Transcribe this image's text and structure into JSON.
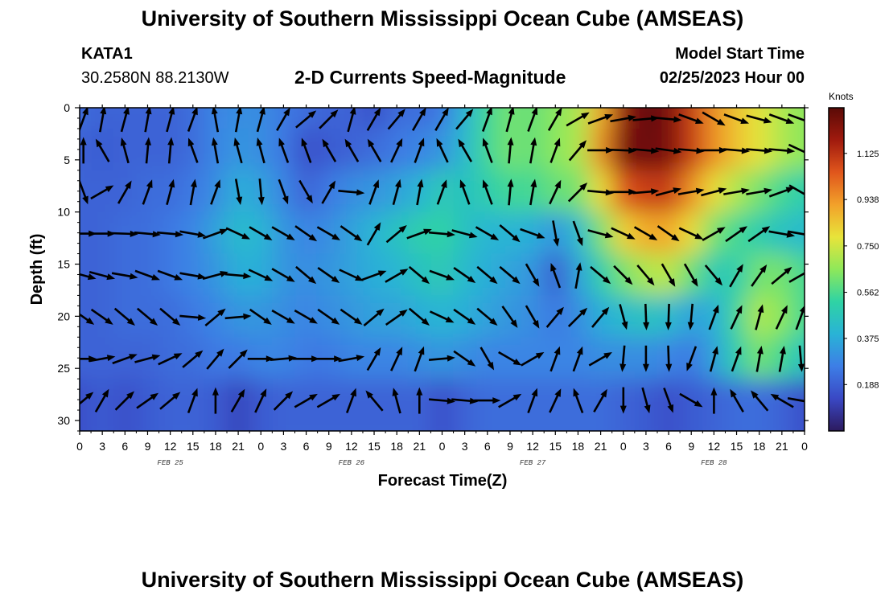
{
  "header": {
    "title": "University of Southern Mississippi Ocean Cube (AMSEAS)",
    "station_id": "KATA1",
    "station_coords": "30.2580N  88.2130W",
    "product": "2-D Currents Speed-Magnitude",
    "model_start_label": "Model Start Time",
    "model_start_value": "02/25/2023 Hour 00"
  },
  "footer": {
    "title": "University of Southern Mississippi Ocean Cube (AMSEAS)"
  },
  "colorbar": {
    "units": "Knots",
    "ticks": [
      "0.188",
      "0.375",
      "0.562",
      "0.750",
      "0.938",
      "1.125"
    ],
    "tick_values": [
      0.188,
      0.375,
      0.562,
      0.75,
      0.938,
      1.125
    ],
    "range": [
      0,
      1.31
    ],
    "colors": [
      "#2c1a5e",
      "#3a48c4",
      "#3d7ee6",
      "#29b3d6",
      "#2fd3a4",
      "#8ee85a",
      "#e8e43a",
      "#f2a12a",
      "#e0561c",
      "#a01a0e",
      "#5a0a06"
    ]
  },
  "chart_data": {
    "type": "heatmap",
    "title": "2-D Currents Speed-Magnitude",
    "xlabel": "Forecast Time(Z)",
    "ylabel": "Depth (ft)",
    "x_tick_labels": [
      "0",
      "3",
      "6",
      "9",
      "12",
      "15",
      "18",
      "21",
      "0",
      "3",
      "6",
      "9",
      "12",
      "15",
      "18",
      "21",
      "0",
      "3",
      "6",
      "9",
      "12",
      "15",
      "18",
      "21",
      "0",
      "3",
      "6",
      "9",
      "12",
      "15",
      "18",
      "21",
      "0"
    ],
    "day_labels": [
      "FEB 25",
      "FEB 26",
      "FEB 27",
      "FEB 28"
    ],
    "y_ticks": [
      0,
      5,
      10,
      15,
      20,
      25,
      30
    ],
    "y_tick_labels": [
      "0",
      "5",
      "10",
      "15",
      "20",
      "25",
      "30"
    ],
    "ylim": [
      0,
      31
    ],
    "xlim_hours": [
      0,
      96
    ],
    "depths_ft": [
      0,
      4,
      8,
      12,
      16,
      20,
      24,
      28
    ],
    "hours": [
      0,
      3,
      6,
      9,
      12,
      15,
      18,
      21,
      24,
      27,
      30,
      33,
      36,
      39,
      42,
      45,
      48,
      51,
      54,
      57,
      60,
      63,
      66,
      69,
      72,
      75,
      78,
      81,
      84,
      87,
      90,
      93,
      96
    ],
    "speed_knots": [
      [
        0.22,
        0.2,
        0.2,
        0.2,
        0.2,
        0.22,
        0.28,
        0.3,
        0.3,
        0.25,
        0.22,
        0.2,
        0.2,
        0.15,
        0.22,
        0.22,
        0.25,
        0.4,
        0.55,
        0.62,
        0.6,
        0.65,
        0.7,
        0.9,
        1.2,
        1.3,
        1.25,
        1.1,
        0.95,
        0.85,
        0.78,
        0.7,
        0.65
      ],
      [
        0.2,
        0.18,
        0.2,
        0.2,
        0.2,
        0.22,
        0.28,
        0.32,
        0.3,
        0.25,
        0.15,
        0.18,
        0.2,
        0.22,
        0.25,
        0.28,
        0.32,
        0.42,
        0.55,
        0.62,
        0.6,
        0.65,
        0.7,
        0.95,
        1.25,
        1.28,
        1.25,
        1.1,
        0.95,
        0.85,
        0.78,
        0.7,
        0.65
      ],
      [
        0.2,
        0.2,
        0.2,
        0.22,
        0.22,
        0.25,
        0.3,
        0.38,
        0.35,
        0.28,
        0.2,
        0.25,
        0.3,
        0.32,
        0.35,
        0.4,
        0.48,
        0.45,
        0.5,
        0.55,
        0.55,
        0.6,
        0.62,
        0.8,
        1.05,
        1.1,
        1.1,
        0.95,
        0.8,
        0.7,
        0.62,
        0.55,
        0.5
      ],
      [
        0.2,
        0.2,
        0.22,
        0.22,
        0.25,
        0.28,
        0.35,
        0.42,
        0.4,
        0.32,
        0.28,
        0.3,
        0.35,
        0.4,
        0.45,
        0.5,
        0.52,
        0.45,
        0.4,
        0.4,
        0.38,
        0.32,
        0.42,
        0.62,
        0.82,
        0.9,
        0.9,
        0.8,
        0.62,
        0.55,
        0.5,
        0.45,
        0.42
      ],
      [
        0.2,
        0.2,
        0.22,
        0.22,
        0.25,
        0.28,
        0.32,
        0.38,
        0.38,
        0.32,
        0.3,
        0.32,
        0.35,
        0.38,
        0.4,
        0.45,
        0.48,
        0.42,
        0.38,
        0.35,
        0.32,
        0.18,
        0.35,
        0.5,
        0.62,
        0.7,
        0.72,
        0.6,
        0.48,
        0.5,
        0.62,
        0.62,
        0.55
      ],
      [
        0.2,
        0.2,
        0.22,
        0.22,
        0.22,
        0.25,
        0.28,
        0.32,
        0.32,
        0.3,
        0.28,
        0.3,
        0.32,
        0.35,
        0.35,
        0.38,
        0.4,
        0.38,
        0.35,
        0.32,
        0.3,
        0.25,
        0.3,
        0.38,
        0.42,
        0.45,
        0.42,
        0.35,
        0.38,
        0.55,
        0.7,
        0.65,
        0.55
      ],
      [
        0.2,
        0.2,
        0.2,
        0.2,
        0.22,
        0.22,
        0.25,
        0.25,
        0.28,
        0.28,
        0.25,
        0.25,
        0.28,
        0.28,
        0.28,
        0.3,
        0.32,
        0.3,
        0.28,
        0.28,
        0.28,
        0.28,
        0.28,
        0.3,
        0.3,
        0.3,
        0.28,
        0.25,
        0.35,
        0.5,
        0.62,
        0.55,
        0.45
      ],
      [
        0.15,
        0.18,
        0.15,
        0.18,
        0.2,
        0.2,
        0.18,
        0.12,
        0.18,
        0.2,
        0.2,
        0.2,
        0.2,
        0.2,
        0.2,
        0.2,
        0.15,
        0.2,
        0.22,
        0.22,
        0.22,
        0.22,
        0.22,
        0.22,
        0.2,
        0.18,
        0.15,
        0.18,
        0.2,
        0.22,
        0.22,
        0.2,
        0.15
      ]
    ],
    "vector_rows_depth_ft": [
      0,
      3,
      7,
      11,
      15,
      19,
      23,
      27
    ],
    "vector_cols_hours": [
      0.5,
      3,
      6,
      9,
      12,
      15,
      18,
      21,
      24,
      27,
      30,
      33,
      36,
      39,
      42,
      45,
      48,
      51,
      54,
      57,
      60,
      63,
      66,
      69,
      72,
      75,
      78,
      81,
      84,
      87,
      90,
      93,
      95.5
    ],
    "direction_deg_from_north": [
      [
        20,
        10,
        15,
        10,
        15,
        20,
        350,
        10,
        15,
        30,
        50,
        45,
        15,
        30,
        40,
        30,
        30,
        40,
        20,
        15,
        20,
        30,
        60,
        70,
        80,
        85,
        95,
        110,
        120,
        110,
        105,
        110,
        110
      ],
      [
        0,
        330,
        345,
        5,
        5,
        340,
        350,
        345,
        345,
        340,
        340,
        330,
        330,
        330,
        25,
        20,
        335,
        330,
        340,
        5,
        10,
        20,
        40,
        90,
        92,
        95,
        98,
        95,
        90,
        95,
        95,
        95,
        115
      ],
      [
        160,
        60,
        30,
        20,
        15,
        10,
        20,
        170,
        175,
        160,
        150,
        30,
        95,
        20,
        15,
        10,
        20,
        340,
        340,
        5,
        10,
        25,
        45,
        95,
        90,
        85,
        75,
        80,
        75,
        80,
        80,
        70,
        120
      ],
      [
        90,
        90,
        92,
        95,
        95,
        100,
        70,
        115,
        120,
        120,
        125,
        120,
        125,
        30,
        50,
        70,
        95,
        105,
        120,
        130,
        110,
        170,
        160,
        105,
        115,
        120,
        125,
        115,
        60,
        55,
        55,
        100,
        100
      ],
      [
        105,
        105,
        100,
        110,
        110,
        100,
        75,
        95,
        115,
        120,
        130,
        125,
        115,
        70,
        60,
        130,
        110,
        125,
        130,
        130,
        150,
        340,
        10,
        130,
        135,
        140,
        150,
        150,
        140,
        30,
        35,
        50,
        60
      ],
      [
        125,
        125,
        130,
        130,
        130,
        95,
        50,
        85,
        125,
        120,
        120,
        125,
        125,
        50,
        55,
        130,
        115,
        125,
        130,
        145,
        150,
        40,
        45,
        40,
        165,
        178,
        182,
        185,
        20,
        25,
        15,
        25,
        20
      ],
      [
        90,
        80,
        70,
        75,
        65,
        50,
        40,
        45,
        90,
        85,
        90,
        90,
        80,
        30,
        25,
        20,
        85,
        125,
        150,
        120,
        60,
        20,
        20,
        60,
        185,
        180,
        178,
        200,
        15,
        20,
        10,
        10,
        175
      ],
      [
        50,
        30,
        45,
        55,
        50,
        20,
        0,
        30,
        25,
        45,
        60,
        60,
        20,
        320,
        345,
        0,
        95,
        95,
        90,
        60,
        20,
        25,
        340,
        30,
        180,
        165,
        160,
        120,
        0,
        330,
        320,
        300,
        100
      ]
    ]
  }
}
